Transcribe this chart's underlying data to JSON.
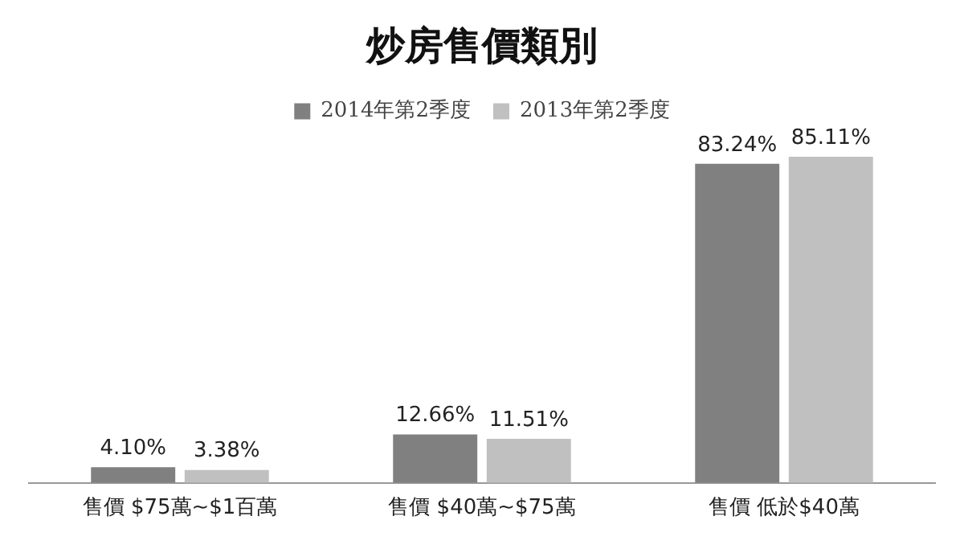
{
  "chart_data": {
    "type": "bar",
    "title": "炒房售價類別",
    "categories": [
      "售價 $75萬~$1百萬",
      "售價 $40萬~$75萬",
      "售價 低於$40萬"
    ],
    "series": [
      {
        "name": "2014年第2季度",
        "color": "#808080",
        "values": [
          4.1,
          12.66,
          83.24
        ],
        "value_labels": [
          "4.10%",
          "12.66%",
          "83.24%"
        ]
      },
      {
        "name": "2013年第2季度",
        "color": "#c0c0c0",
        "values": [
          3.38,
          11.51,
          85.11
        ],
        "value_labels": [
          "3.38%",
          "11.51%",
          "85.11%"
        ]
      }
    ],
    "legend": "top",
    "grid": false,
    "tick_labels": "x"
  }
}
